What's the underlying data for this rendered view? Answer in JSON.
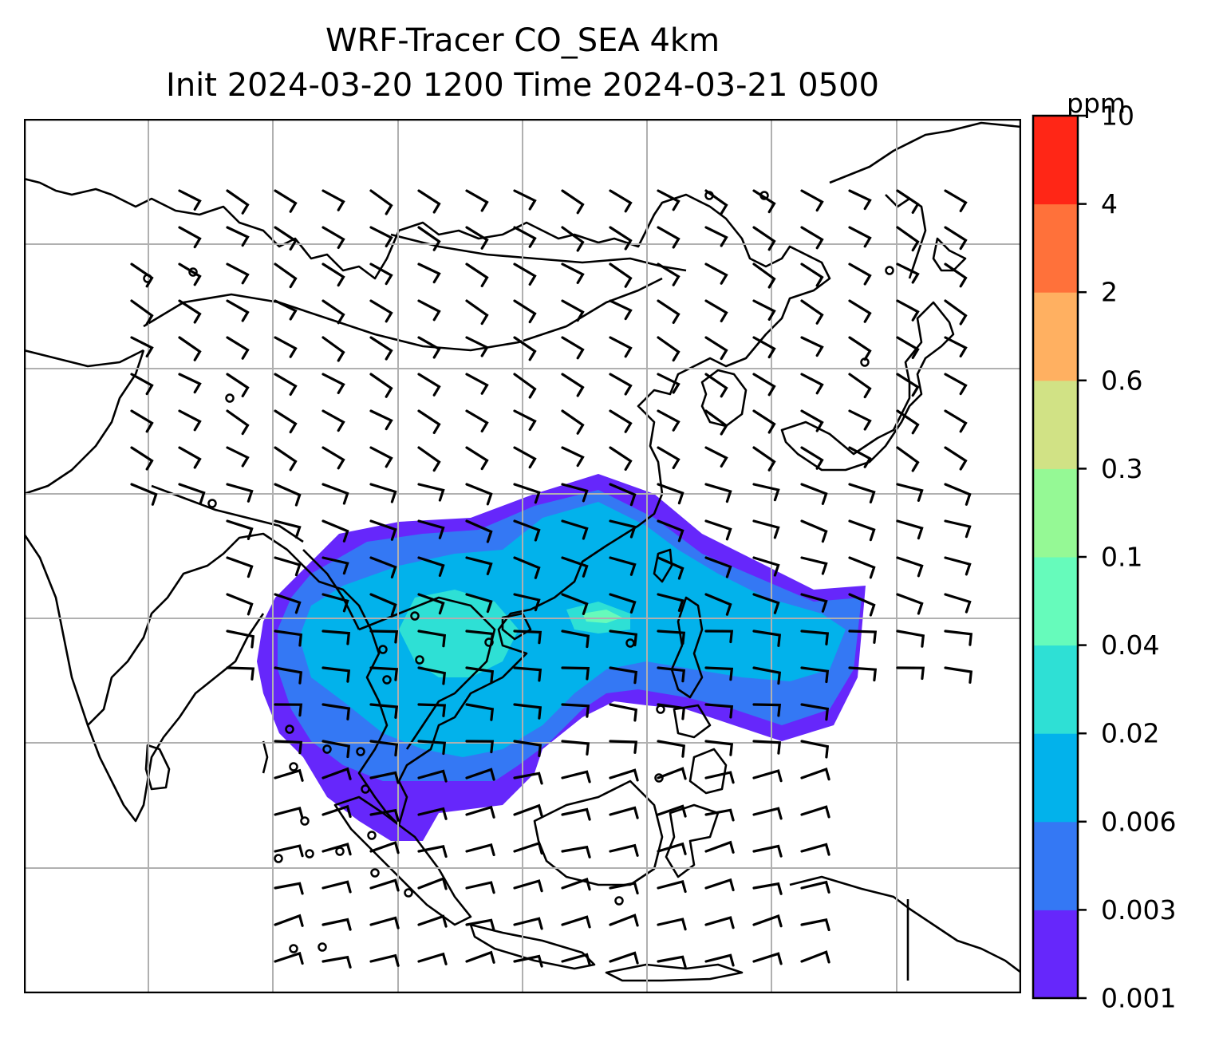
{
  "title_line1": "WRF-Tracer CO_SEA 4km",
  "title_line2": "Init 2024-03-20 1200 Time 2024-03-21 0500",
  "colorbar": {
    "unit": "ppm",
    "levels": [
      "0.001",
      "0.003",
      "0.006",
      "0.02",
      "0.04",
      "0.1",
      "0.3",
      "0.6",
      "2",
      "4",
      "10"
    ],
    "colors": [
      "#6627fb",
      "#3478f4",
      "#02b2eb",
      "#2ee0d5",
      "#66fbbb",
      "#95f995",
      "#d1e285",
      "#ffb061",
      "#ff713a",
      "#ff2616"
    ]
  },
  "map": {
    "gridline_color": "#b0b0b0",
    "coastline_color": "#000000",
    "wind_barb_color": "#000000",
    "tracer_field_levels_present": [
      "0.001",
      "0.003",
      "0.006",
      "0.02",
      "0.04"
    ]
  }
}
